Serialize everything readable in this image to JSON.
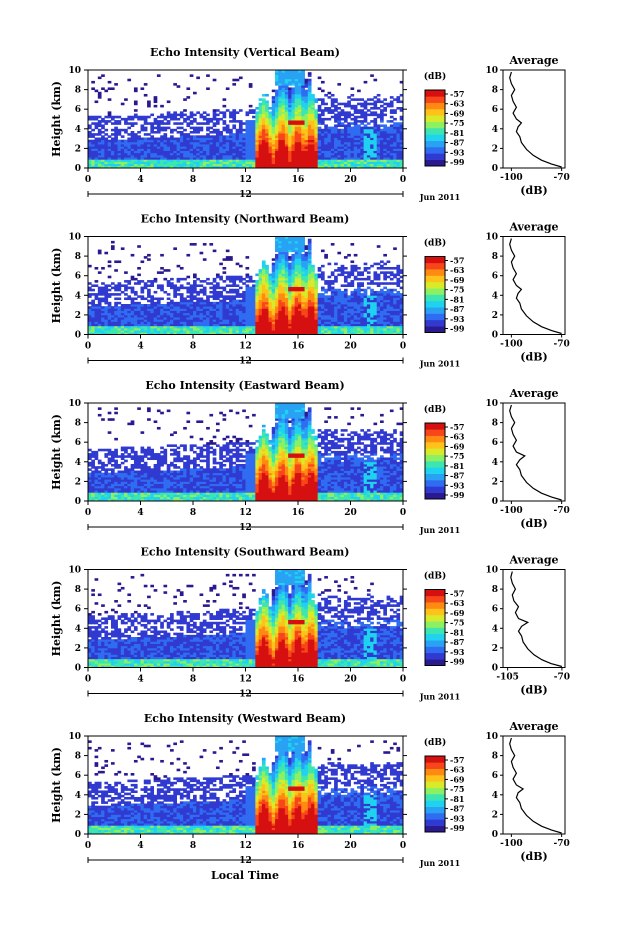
{
  "figure": {
    "xlabel": "Local Time",
    "colormap": [
      "#2a1a90",
      "#303ad0",
      "#2f6cf2",
      "#29a2f4",
      "#1fd2ef",
      "#3de6b0",
      "#8cf062",
      "#d8ea2a",
      "#ffc21a",
      "#ff8a12",
      "#f6461a",
      "#d61010"
    ]
  },
  "chart_data": [
    {
      "type": "heatmap",
      "title": "Echo Intensity (Vertical Beam)",
      "ylabel": "Height (km)",
      "x_ticks": [
        "0",
        "4",
        "8",
        "12",
        "16",
        "20",
        "0"
      ],
      "y_ticks": [
        "0",
        "2",
        "4",
        "6",
        "8",
        "10"
      ],
      "xlim": [
        0,
        24
      ],
      "ylim": [
        0,
        10
      ],
      "date_label": "12",
      "month_label": "Jun 2011",
      "colorbar": {
        "unit": "(dB)",
        "ticks": [
          "-57",
          "-63",
          "-69",
          "-75",
          "-81",
          "-87",
          "-93",
          "-99"
        ]
      },
      "profile": {
        "title": "Average",
        "xlabel": "(dB)",
        "x_ticks": [
          "-100",
          "-70"
        ],
        "y_ticks": [
          "0",
          "2",
          "4",
          "6",
          "8",
          "10"
        ],
        "xlim": [
          -105,
          -68
        ],
        "points": [
          [
            -70,
            0.1
          ],
          [
            -76,
            0.4
          ],
          [
            -82,
            0.8
          ],
          [
            -87,
            1.3
          ],
          [
            -91,
            1.9
          ],
          [
            -94,
            2.6
          ],
          [
            -95,
            3.2
          ],
          [
            -97,
            3.7
          ],
          [
            -96,
            4.2
          ],
          [
            -94,
            4.6
          ],
          [
            -97,
            5.0
          ],
          [
            -99,
            5.6
          ],
          [
            -97,
            6.2
          ],
          [
            -99,
            6.8
          ],
          [
            -100,
            7.4
          ],
          [
            -98,
            8.0
          ],
          [
            -100,
            8.6
          ],
          [
            -101,
            9.2
          ],
          [
            -100,
            9.8
          ]
        ]
      }
    },
    {
      "type": "heatmap",
      "title": "Echo Intensity (Northward Beam)",
      "ylabel": "Height (km)",
      "x_ticks": [
        "0",
        "4",
        "8",
        "12",
        "16",
        "20",
        "0"
      ],
      "y_ticks": [
        "0",
        "2",
        "4",
        "6",
        "8",
        "10"
      ],
      "xlim": [
        0,
        24
      ],
      "ylim": [
        0,
        10
      ],
      "date_label": "12",
      "month_label": "Jun 2011",
      "colorbar": {
        "unit": "(dB)",
        "ticks": [
          "-57",
          "-63",
          "-69",
          "-75",
          "-81",
          "-87",
          "-93",
          "-99"
        ]
      },
      "profile": {
        "title": "Average",
        "xlabel": "(dB)",
        "x_ticks": [
          "-100",
          "-70"
        ],
        "y_ticks": [
          "0",
          "2",
          "4",
          "6",
          "8",
          "10"
        ],
        "xlim": [
          -105,
          -68
        ],
        "points": [
          [
            -70,
            0.1
          ],
          [
            -76,
            0.4
          ],
          [
            -82,
            0.8
          ],
          [
            -87,
            1.3
          ],
          [
            -91,
            1.9
          ],
          [
            -94,
            2.6
          ],
          [
            -95,
            3.2
          ],
          [
            -97,
            3.7
          ],
          [
            -96,
            4.2
          ],
          [
            -94,
            4.6
          ],
          [
            -97,
            5.0
          ],
          [
            -99,
            5.6
          ],
          [
            -97,
            6.2
          ],
          [
            -99,
            6.8
          ],
          [
            -100,
            7.4
          ],
          [
            -98,
            8.0
          ],
          [
            -100,
            8.6
          ],
          [
            -101,
            9.2
          ],
          [
            -100,
            9.8
          ]
        ]
      }
    },
    {
      "type": "heatmap",
      "title": "Echo Intensity (Eastward Beam)",
      "ylabel": "Height (km)",
      "x_ticks": [
        "0",
        "4",
        "8",
        "12",
        "16",
        "20",
        "0"
      ],
      "y_ticks": [
        "0",
        "2",
        "4",
        "6",
        "8",
        "10"
      ],
      "xlim": [
        0,
        24
      ],
      "ylim": [
        0,
        10
      ],
      "date_label": "12",
      "month_label": "Jun 2011",
      "colorbar": {
        "unit": "(dB)",
        "ticks": [
          "-57",
          "-63",
          "-69",
          "-75",
          "-81",
          "-87",
          "-93",
          "-99"
        ]
      },
      "profile": {
        "title": "Average",
        "xlabel": "(dB)",
        "x_ticks": [
          "-100",
          "-70"
        ],
        "y_ticks": [
          "0",
          "2",
          "4",
          "6",
          "8",
          "10"
        ],
        "xlim": [
          -105,
          -68
        ],
        "points": [
          [
            -70,
            0.1
          ],
          [
            -76,
            0.4
          ],
          [
            -82,
            0.8
          ],
          [
            -87,
            1.3
          ],
          [
            -91,
            1.9
          ],
          [
            -94,
            2.6
          ],
          [
            -95,
            3.2
          ],
          [
            -97,
            3.7
          ],
          [
            -95,
            4.2
          ],
          [
            -92,
            4.6
          ],
          [
            -97,
            5.0
          ],
          [
            -99,
            5.6
          ],
          [
            -97,
            6.2
          ],
          [
            -99,
            6.8
          ],
          [
            -100,
            7.4
          ],
          [
            -98,
            8.0
          ],
          [
            -100,
            8.6
          ],
          [
            -101,
            9.2
          ],
          [
            -100,
            9.8
          ]
        ]
      }
    },
    {
      "type": "heatmap",
      "title": "Echo Intensity (Southward Beam)",
      "ylabel": "Height (km)",
      "x_ticks": [
        "0",
        "4",
        "8",
        "12",
        "16",
        "20",
        "0"
      ],
      "y_ticks": [
        "0",
        "2",
        "4",
        "6",
        "8",
        "10"
      ],
      "xlim": [
        0,
        24
      ],
      "ylim": [
        0,
        10
      ],
      "date_label": "12",
      "month_label": "Jun 2011",
      "colorbar": {
        "unit": "(dB)",
        "ticks": [
          "-57",
          "-63",
          "-69",
          "-75",
          "-81",
          "-87",
          "-93",
          "-99"
        ]
      },
      "profile": {
        "title": "Average",
        "xlabel": "(dB)",
        "x_ticks": [
          "-105",
          "-70"
        ],
        "y_ticks": [
          "0",
          "2",
          "4",
          "6",
          "8",
          "10"
        ],
        "xlim": [
          -108,
          -68
        ],
        "points": [
          [
            -70,
            0.1
          ],
          [
            -77,
            0.4
          ],
          [
            -83,
            0.8
          ],
          [
            -88,
            1.3
          ],
          [
            -92,
            1.9
          ],
          [
            -95,
            2.6
          ],
          [
            -96,
            3.2
          ],
          [
            -98,
            3.7
          ],
          [
            -96,
            4.2
          ],
          [
            -92,
            4.6
          ],
          [
            -98,
            5.0
          ],
          [
            -100,
            5.6
          ],
          [
            -98,
            6.2
          ],
          [
            -101,
            6.8
          ],
          [
            -102,
            7.4
          ],
          [
            -100,
            8.0
          ],
          [
            -102,
            8.6
          ],
          [
            -103,
            9.2
          ],
          [
            -102,
            9.8
          ]
        ]
      }
    },
    {
      "type": "heatmap",
      "title": "Echo Intensity (Westward Beam)",
      "ylabel": "Height (km)",
      "x_ticks": [
        "0",
        "4",
        "8",
        "12",
        "16",
        "20",
        "0"
      ],
      "y_ticks": [
        "0",
        "2",
        "4",
        "6",
        "8",
        "10"
      ],
      "xlim": [
        0,
        24
      ],
      "ylim": [
        0,
        10
      ],
      "date_label": "12",
      "month_label": "Jun 2011",
      "colorbar": {
        "unit": "(dB)",
        "ticks": [
          "-57",
          "-63",
          "-69",
          "-75",
          "-81",
          "-87",
          "-93",
          "-99"
        ]
      },
      "profile": {
        "title": "Average",
        "xlabel": "(dB)",
        "x_ticks": [
          "-100",
          "-70"
        ],
        "y_ticks": [
          "0",
          "2",
          "4",
          "6",
          "8",
          "10"
        ],
        "xlim": [
          -105,
          -68
        ],
        "points": [
          [
            -70,
            0.1
          ],
          [
            -76,
            0.4
          ],
          [
            -82,
            0.8
          ],
          [
            -87,
            1.3
          ],
          [
            -91,
            1.9
          ],
          [
            -94,
            2.6
          ],
          [
            -95,
            3.2
          ],
          [
            -97,
            3.7
          ],
          [
            -96,
            4.2
          ],
          [
            -93,
            4.6
          ],
          [
            -97,
            5.0
          ],
          [
            -99,
            5.6
          ],
          [
            -97,
            6.2
          ],
          [
            -99,
            6.8
          ],
          [
            -100,
            7.4
          ],
          [
            -98,
            8.0
          ],
          [
            -100,
            8.6
          ],
          [
            -101,
            9.2
          ],
          [
            -100,
            9.8
          ]
        ]
      }
    }
  ]
}
